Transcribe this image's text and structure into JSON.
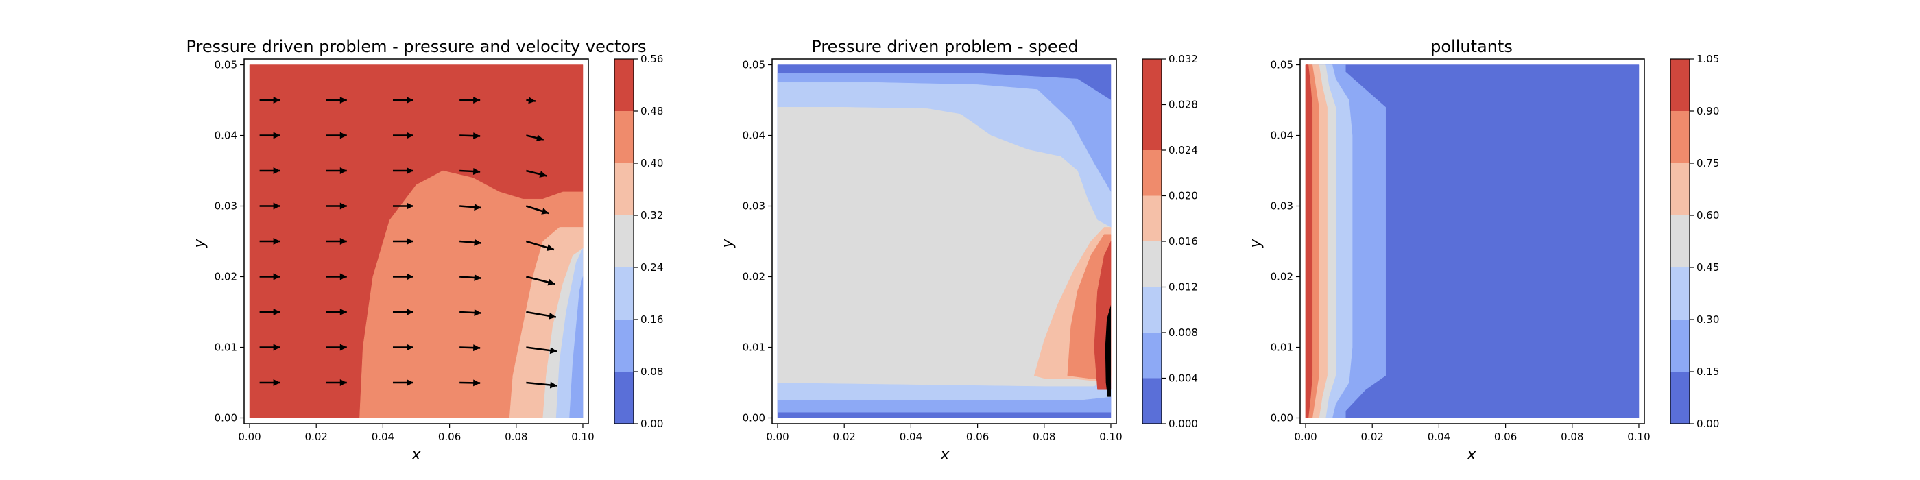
{
  "colors": {
    "levels": [
      "#5a6fd8",
      "#8da9f5",
      "#b8cdf7",
      "#dcdcdc",
      "#f5c0a8",
      "#ef8b6c",
      "#d0473d"
    ]
  },
  "chart_data": [
    {
      "type": "contour",
      "title": "Pressure driven problem - pressure and velocity vectors",
      "xlabel": "x",
      "ylabel": "y",
      "xlim": [
        0,
        0.1
      ],
      "ylim": [
        0,
        0.05
      ],
      "xticks": [
        "0.00",
        "0.02",
        "0.04",
        "0.06",
        "0.08",
        "0.10"
      ],
      "yticks": [
        "0.00",
        "0.01",
        "0.02",
        "0.03",
        "0.04",
        "0.05"
      ],
      "colorbar": {
        "levels": [
          0,
          0.08,
          0.16,
          0.24,
          0.32,
          0.4,
          0.48,
          0.56
        ],
        "ticks": [
          "0.00",
          "0.08",
          "0.16",
          "0.24",
          "0.32",
          "0.40",
          "0.48",
          "0.56"
        ]
      },
      "regions": [
        {
          "level": 6,
          "points": [
            [
              0,
              0
            ],
            [
              0.1,
              0
            ],
            [
              0.1,
              0.05
            ],
            [
              0,
              0.05
            ]
          ]
        },
        {
          "level": 5,
          "points": [
            [
              0.033,
              0
            ],
            [
              0.034,
              0.01
            ],
            [
              0.037,
              0.02
            ],
            [
              0.042,
              0.028
            ],
            [
              0.05,
              0.033
            ],
            [
              0.058,
              0.035
            ],
            [
              0.067,
              0.034
            ],
            [
              0.075,
              0.032
            ],
            [
              0.082,
              0.031
            ],
            [
              0.088,
              0.031
            ],
            [
              0.094,
              0.032
            ],
            [
              0.1,
              0.032
            ],
            [
              0.1,
              0
            ]
          ]
        },
        {
          "level": 4,
          "points": [
            [
              0.078,
              0
            ],
            [
              0.079,
              0.006
            ],
            [
              0.082,
              0.013
            ],
            [
              0.085,
              0.02
            ],
            [
              0.088,
              0.025
            ],
            [
              0.093,
              0.027
            ],
            [
              0.1,
              0.027
            ],
            [
              0.1,
              0
            ]
          ]
        },
        {
          "level": 3,
          "points": [
            [
              0.088,
              0
            ],
            [
              0.089,
              0.006
            ],
            [
              0.091,
              0.013
            ],
            [
              0.094,
              0.019
            ],
            [
              0.097,
              0.023
            ],
            [
              0.1,
              0.024
            ],
            [
              0.1,
              0
            ]
          ]
        },
        {
          "level": 2,
          "points": [
            [
              0.092,
              0
            ],
            [
              0.093,
              0.008
            ],
            [
              0.095,
              0.015
            ],
            [
              0.098,
              0.022
            ],
            [
              0.1,
              0.024
            ],
            [
              0.1,
              0
            ]
          ]
        },
        {
          "level": 1,
          "points": [
            [
              0.096,
              0
            ],
            [
              0.097,
              0.008
            ],
            [
              0.099,
              0.018
            ],
            [
              0.1,
              0.02
            ],
            [
              0.1,
              0
            ]
          ]
        }
      ],
      "quiver": {
        "x": [
          0.003,
          0.023,
          0.043,
          0.063,
          0.083
        ],
        "y": [
          0.005,
          0.01,
          0.015,
          0.02,
          0.025,
          0.03,
          0.035,
          0.04,
          0.045
        ],
        "u": [
          [
            1,
            1,
            1,
            1,
            1.5
          ],
          [
            1,
            1,
            1,
            1,
            1.5
          ],
          [
            1,
            1,
            1,
            1.05,
            1.45
          ],
          [
            1,
            1,
            1,
            1.05,
            1.4
          ],
          [
            1,
            1,
            1,
            1.05,
            1.35
          ],
          [
            1,
            1,
            1,
            1.05,
            1.1
          ],
          [
            1,
            1,
            1,
            1,
            1
          ],
          [
            1,
            1,
            1,
            1,
            0.85
          ],
          [
            1,
            1,
            1,
            1,
            0.45
          ]
        ],
        "v": [
          [
            0,
            0,
            0,
            -0.02,
            -0.15
          ],
          [
            0,
            0,
            0,
            -0.03,
            -0.2
          ],
          [
            0,
            0,
            0,
            -0.05,
            -0.25
          ],
          [
            0,
            0,
            0,
            -0.07,
            -0.35
          ],
          [
            0,
            0,
            0,
            -0.08,
            -0.4
          ],
          [
            0,
            0,
            0,
            -0.08,
            -0.35
          ],
          [
            0,
            0,
            0,
            -0.05,
            -0.25
          ],
          [
            0,
            0,
            0,
            -0.03,
            -0.2
          ],
          [
            0,
            0,
            0,
            0,
            -0.05
          ]
        ]
      }
    },
    {
      "type": "contour",
      "title": "Pressure driven problem - speed",
      "xlabel": "x",
      "ylabel": "y",
      "xlim": [
        0,
        0.1
      ],
      "ylim": [
        0,
        0.05
      ],
      "xticks": [
        "0.00",
        "0.02",
        "0.04",
        "0.06",
        "0.08",
        "0.10"
      ],
      "yticks": [
        "0.00",
        "0.01",
        "0.02",
        "0.03",
        "0.04",
        "0.05"
      ],
      "colorbar": {
        "levels": [
          0,
          0.004,
          0.008,
          0.012,
          0.016,
          0.02,
          0.024,
          0.028,
          0.032
        ],
        "ticks": [
          "0.000",
          "0.004",
          "0.008",
          "0.012",
          "0.016",
          "0.020",
          "0.024",
          "0.028",
          "0.032"
        ]
      },
      "region_levels": [
        0,
        1,
        2,
        3,
        4,
        5,
        6
      ],
      "regions": [
        {
          "level": 0,
          "points": [
            [
              0,
              0
            ],
            [
              0.1,
              0
            ],
            [
              0.1,
              0.05
            ],
            [
              0,
              0.05
            ]
          ]
        },
        {
          "level": 1,
          "points": [
            [
              0,
              0.0008
            ],
            [
              0.1,
              0.0008
            ],
            [
              0.1,
              0.045
            ],
            [
              0.09,
              0.048
            ],
            [
              0.06,
              0.0488
            ],
            [
              0.03,
              0.0488
            ],
            [
              0,
              0.0488
            ]
          ]
        },
        {
          "level": 2,
          "points": [
            [
              0,
              0.0025
            ],
            [
              0.09,
              0.0025
            ],
            [
              0.1,
              0.003
            ],
            [
              0.1,
              0.032
            ],
            [
              0.095,
              0.036
            ],
            [
              0.088,
              0.042
            ],
            [
              0.078,
              0.0465
            ],
            [
              0.06,
              0.0472
            ],
            [
              0.03,
              0.0475
            ],
            [
              0,
              0.0475
            ]
          ]
        },
        {
          "level": 3,
          "points": [
            [
              0,
              0.005
            ],
            [
              0.08,
              0.0045
            ],
            [
              0.095,
              0.0045
            ],
            [
              0.1,
              0.006
            ],
            [
              0.1,
              0.027
            ],
            [
              0.096,
              0.028
            ],
            [
              0.093,
              0.031
            ],
            [
              0.09,
              0.035
            ],
            [
              0.085,
              0.037
            ],
            [
              0.075,
              0.038
            ],
            [
              0.064,
              0.04
            ],
            [
              0.055,
              0.043
            ],
            [
              0.045,
              0.0438
            ],
            [
              0.02,
              0.044
            ],
            [
              0,
              0.044
            ]
          ]
        },
        {
          "level": 4,
          "points": [
            [
              0.077,
              0.006
            ],
            [
              0.08,
              0.011
            ],
            [
              0.084,
              0.016
            ],
            [
              0.089,
              0.021
            ],
            [
              0.094,
              0.025
            ],
            [
              0.098,
              0.027
            ],
            [
              0.1,
              0.027
            ],
            [
              0.1,
              0.005
            ],
            [
              0.09,
              0.0055
            ],
            [
              0.08,
              0.0056
            ]
          ]
        },
        {
          "level": 5,
          "points": [
            [
              0.087,
              0.006
            ],
            [
              0.088,
              0.013
            ],
            [
              0.09,
              0.018
            ],
            [
              0.094,
              0.023
            ],
            [
              0.098,
              0.026
            ],
            [
              0.1,
              0.026
            ],
            [
              0.1,
              0.006
            ],
            [
              0.095,
              0.0055
            ]
          ]
        },
        {
          "level": 6,
          "points": [
            [
              0.096,
              0.004
            ],
            [
              0.095,
              0.01
            ],
            [
              0.096,
              0.018
            ],
            [
              0.098,
              0.023
            ],
            [
              0.1,
              0.025
            ],
            [
              0.1,
              0.004
            ]
          ]
        },
        {
          "level": 7,
          "points": [
            [
              0.099,
              0.003
            ],
            [
              0.0985,
              0.005
            ],
            [
              0.0983,
              0.01
            ],
            [
              0.0988,
              0.014
            ],
            [
              0.1,
              0.016
            ],
            [
              0.1,
              0.003
            ]
          ]
        }
      ]
    },
    {
      "type": "contour",
      "title": "pollutants",
      "xlabel": "x",
      "ylabel": "y",
      "xlim": [
        0,
        0.1
      ],
      "ylim": [
        0,
        0.05
      ],
      "xticks": [
        "0.00",
        "0.02",
        "0.04",
        "0.06",
        "0.08",
        "0.10"
      ],
      "yticks": [
        "0.00",
        "0.01",
        "0.02",
        "0.03",
        "0.04",
        "0.05"
      ],
      "colorbar": {
        "levels": [
          0,
          0.15,
          0.3,
          0.45,
          0.6,
          0.75,
          0.9,
          1.05
        ],
        "ticks": [
          "0.00",
          "0.15",
          "0.30",
          "0.45",
          "0.60",
          "0.75",
          "0.90",
          "1.05"
        ]
      },
      "regions": [
        {
          "level": 0,
          "points": [
            [
              0,
              0
            ],
            [
              0.1,
              0
            ],
            [
              0.1,
              0.05
            ],
            [
              0,
              0.05
            ]
          ]
        },
        {
          "level": 1,
          "points": [
            [
              0,
              0
            ],
            [
              0.012,
              0
            ],
            [
              0.012,
              0.001
            ],
            [
              0.018,
              0.004
            ],
            [
              0.024,
              0.006
            ],
            [
              0.024,
              0.044
            ],
            [
              0.018,
              0.0465
            ],
            [
              0.012,
              0.049
            ],
            [
              0.012,
              0.05
            ],
            [
              0,
              0.05
            ]
          ]
        },
        {
          "level": 2,
          "points": [
            [
              0,
              0
            ],
            [
              0.008,
              0
            ],
            [
              0.009,
              0.002
            ],
            [
              0.013,
              0.005
            ],
            [
              0.014,
              0.01
            ],
            [
              0.014,
              0.04
            ],
            [
              0.013,
              0.045
            ],
            [
              0.009,
              0.048
            ],
            [
              0.008,
              0.05
            ],
            [
              0,
              0.05
            ]
          ]
        },
        {
          "level": 3,
          "points": [
            [
              0,
              0
            ],
            [
              0.006,
              0
            ],
            [
              0.007,
              0.003
            ],
            [
              0.009,
              0.006
            ],
            [
              0.009,
              0.044
            ],
            [
              0.007,
              0.047
            ],
            [
              0.006,
              0.05
            ],
            [
              0,
              0.05
            ]
          ]
        },
        {
          "level": 4,
          "points": [
            [
              0,
              0
            ],
            [
              0.004,
              0
            ],
            [
              0.005,
              0.003
            ],
            [
              0.0065,
              0.006
            ],
            [
              0.0065,
              0.044
            ],
            [
              0.005,
              0.047
            ],
            [
              0.004,
              0.05
            ],
            [
              0,
              0.05
            ]
          ]
        },
        {
          "level": 5,
          "points": [
            [
              0,
              0
            ],
            [
              0.002,
              0
            ],
            [
              0.003,
              0.003
            ],
            [
              0.004,
              0.006
            ],
            [
              0.004,
              0.044
            ],
            [
              0.003,
              0.047
            ],
            [
              0.002,
              0.05
            ],
            [
              0,
              0.05
            ]
          ]
        },
        {
          "level": 6,
          "points": [
            [
              0,
              0
            ],
            [
              0.0008,
              0
            ],
            [
              0.0015,
              0.003
            ],
            [
              0.002,
              0.006
            ],
            [
              0.002,
              0.044
            ],
            [
              0.0015,
              0.047
            ],
            [
              0.0008,
              0.05
            ],
            [
              0,
              0.05
            ]
          ]
        }
      ]
    }
  ]
}
